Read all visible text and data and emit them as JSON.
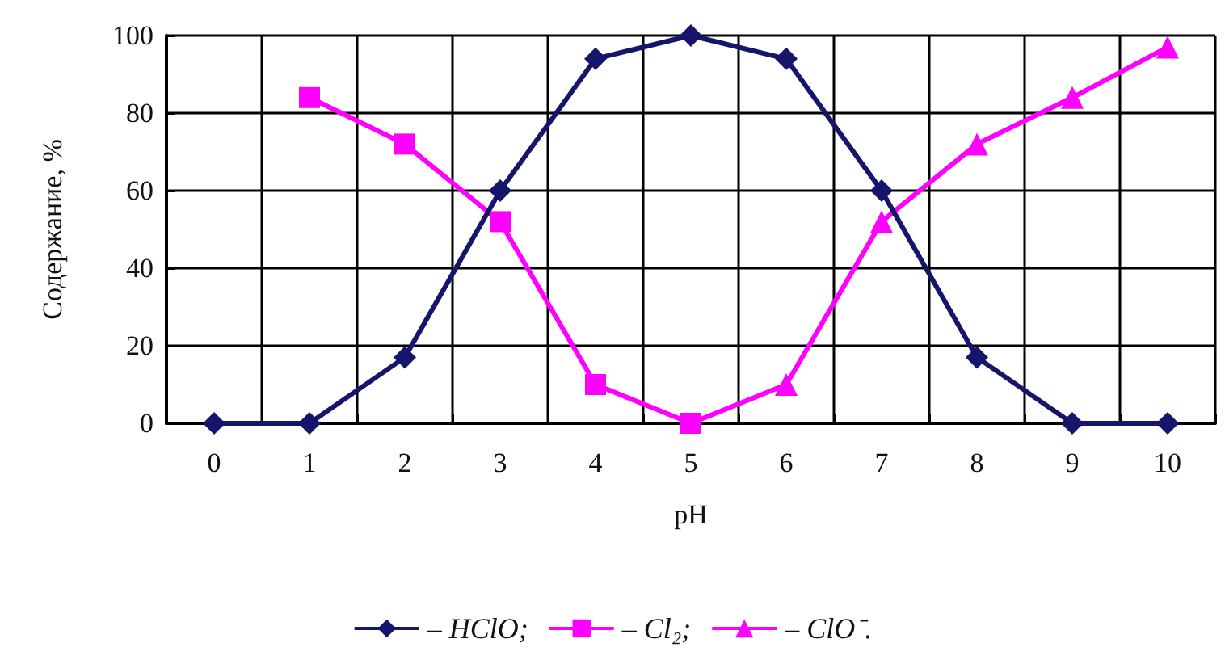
{
  "chart_data": {
    "type": "line",
    "xlabel": "pH",
    "ylabel": "Содержание, %",
    "categories": [
      "0",
      "1",
      "2",
      "3",
      "4",
      "5",
      "6",
      "7",
      "8",
      "9",
      "10"
    ],
    "series": [
      {
        "name": "– HClO;",
        "color": "#15156b",
        "marker": "diamond",
        "values": [
          0,
          0,
          17,
          60,
          94,
          100,
          94,
          60,
          17,
          0,
          0
        ]
      },
      {
        "name": "– Cl₂;",
        "color": "#ff00ff",
        "marker": "square",
        "values": [
          null,
          84,
          72,
          52,
          10,
          0,
          null,
          null,
          null,
          null,
          null
        ]
      },
      {
        "name": "– ClO⁻.",
        "color": "#ff00ff",
        "marker": "triangle",
        "values": [
          null,
          null,
          null,
          null,
          null,
          0,
          10,
          52,
          72,
          84,
          97
        ]
      }
    ],
    "ylim": [
      0,
      100
    ],
    "yticks": [
      0,
      20,
      40,
      60,
      80,
      100
    ],
    "grid": true,
    "legend": "bottom"
  }
}
